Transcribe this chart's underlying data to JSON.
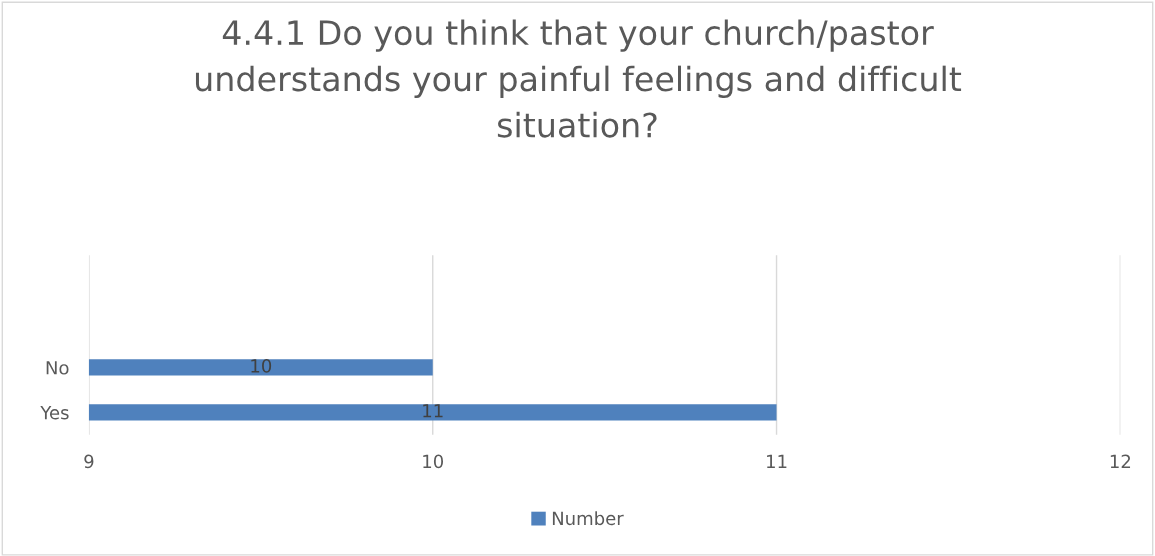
{
  "chart_data": {
    "type": "bar",
    "orientation": "horizontal",
    "title": "4.4.1 Do you think that your church/pastor\nunderstands your painful feelings and difficult\nsituation?",
    "categories": [
      null,
      null,
      "No",
      "Yes"
    ],
    "series": [
      {
        "name": "Number",
        "color": "#4f81bd",
        "values": [
          null,
          null,
          10,
          11
        ]
      }
    ],
    "xlim": [
      9,
      12
    ],
    "xticks": [
      9,
      10,
      11,
      12
    ],
    "grid": "x",
    "legend": "bottom",
    "data_labels": true
  }
}
